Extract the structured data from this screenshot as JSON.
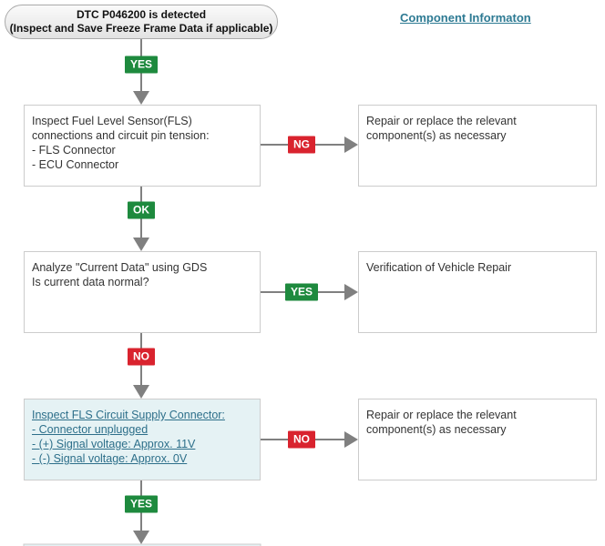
{
  "start": {
    "lines": [
      "DTC P046200 is detected",
      "(Inspect and Save Freeze Frame Data if applicable)"
    ]
  },
  "link": "Component Informaton",
  "steps": [
    {
      "lines": [
        "Inspect Fuel Level Sensor(FLS)",
        "connections and circuit pin tension:",
        "- FLS Connector",
        "- ECU Connector"
      ],
      "highlight": false
    },
    {
      "lines": [
        "Analyze \"Current Data\" using GDS",
        "Is current data normal?"
      ],
      "highlight": false
    },
    {
      "lines": [
        "Inspect FLS Circuit Supply Connector:",
        "- Connector unplugged",
        "- (+) Signal voltage: Approx. 11V",
        "- (-) Signal voltage: Approx. 0V"
      ],
      "highlight": true
    }
  ],
  "outcomes": [
    {
      "lines": [
        "Repair or replace the relevant",
        "component(s) as necessary"
      ]
    },
    {
      "lines": [
        "Verification of Vehicle Repair"
      ]
    },
    {
      "lines": [
        "Repair or replace the relevant",
        "component(s) as necessary"
      ]
    }
  ],
  "down_badges": [
    {
      "text": "YES",
      "color": "#1e8a3e"
    },
    {
      "text": "OK",
      "color": "#1e8a3e"
    },
    {
      "text": "NO",
      "color": "#d9232e"
    },
    {
      "text": "YES",
      "color": "#1e8a3e"
    }
  ],
  "side_badges": [
    {
      "text": "NG",
      "color": "#d9232e"
    },
    {
      "text": "YES",
      "color": "#1e8a3e"
    },
    {
      "text": "NO",
      "color": "#d9232e"
    }
  ]
}
